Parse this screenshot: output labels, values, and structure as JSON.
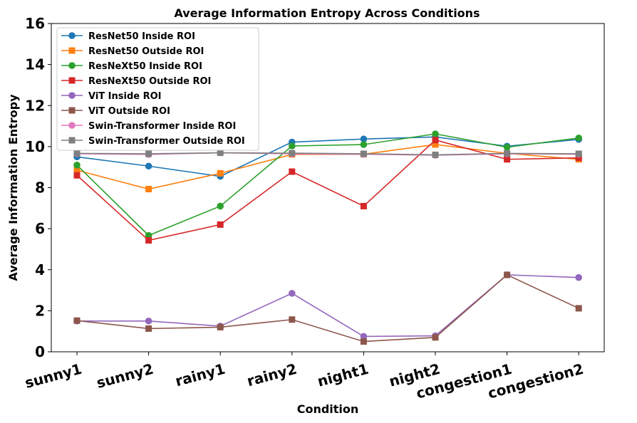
{
  "chart_data": {
    "type": "line",
    "title": "Average Information Entropy Across Conditions",
    "xlabel": "Condition",
    "ylabel": "Average Information Entropy",
    "categories": [
      "sunny1",
      "sunny2",
      "rainy1",
      "rainy2",
      "night1",
      "night2",
      "congestion1",
      "congestion2"
    ],
    "ylim": [
      0,
      16
    ],
    "yticks": [
      0,
      2,
      4,
      6,
      8,
      10,
      12,
      14,
      16
    ],
    "grid": false,
    "legend_position": "top-left",
    "series": [
      {
        "name": "ResNet50 Inside ROI",
        "color": "#1f77b4",
        "marker": "circle",
        "values": [
          9.5,
          9.05,
          8.55,
          10.22,
          10.37,
          10.47,
          10.02,
          10.35
        ]
      },
      {
        "name": "ResNet50 Outside ROI",
        "color": "#ff7f0e",
        "marker": "square",
        "values": [
          8.85,
          7.93,
          8.7,
          9.62,
          9.63,
          10.1,
          9.67,
          9.38
        ]
      },
      {
        "name": "ResNeXt50 Inside ROI",
        "color": "#2ca02c",
        "marker": "circle",
        "values": [
          9.1,
          5.67,
          7.1,
          10.03,
          10.1,
          10.62,
          9.97,
          10.42
        ]
      },
      {
        "name": "ResNeXt50 Outside ROI",
        "color": "#d62728",
        "marker": "square",
        "values": [
          8.6,
          5.43,
          6.2,
          8.78,
          7.1,
          10.32,
          9.38,
          9.45
        ]
      },
      {
        "name": "ViT Inside ROI",
        "color": "#9467bd",
        "marker": "circle",
        "values": [
          1.5,
          1.5,
          1.25,
          2.85,
          0.75,
          0.78,
          3.75,
          3.62
        ]
      },
      {
        "name": "ViT Outside ROI",
        "color": "#8c564b",
        "marker": "square",
        "values": [
          1.52,
          1.13,
          1.2,
          1.57,
          0.5,
          0.7,
          3.75,
          2.12
        ]
      },
      {
        "name": "Swin-Transformer Inside ROI",
        "color": "#e377c2",
        "marker": "circle",
        "values": [
          9.65,
          9.62,
          9.7,
          9.65,
          9.63,
          9.58,
          9.65,
          9.63
        ]
      },
      {
        "name": "Swin-Transformer Outside ROI",
        "color": "#7f7f7f",
        "marker": "square",
        "values": [
          9.67,
          9.65,
          9.7,
          9.68,
          9.65,
          9.6,
          9.67,
          9.65
        ]
      }
    ]
  }
}
